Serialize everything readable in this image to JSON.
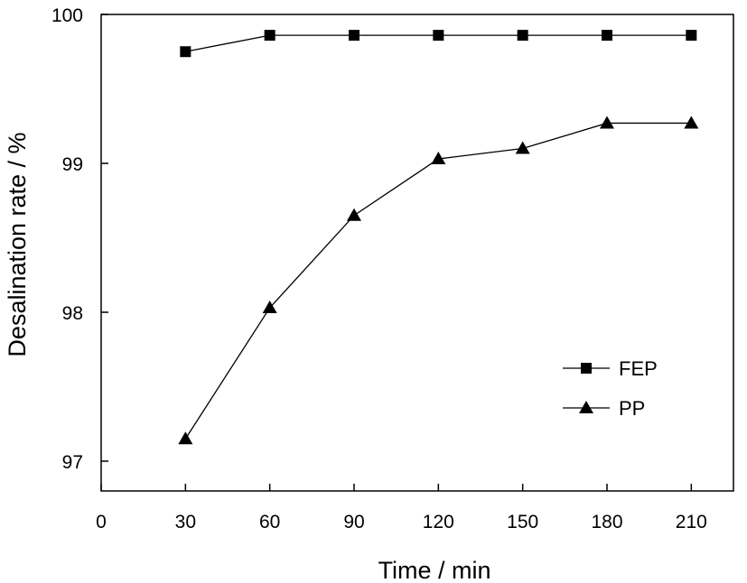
{
  "chart_data": {
    "type": "line",
    "xlabel": "Time / min",
    "ylabel": "Desalination rate / %",
    "xlim": [
      0,
      225
    ],
    "ylim": [
      96.8,
      100
    ],
    "xticks": [
      "0",
      "30",
      "60",
      "90",
      "120",
      "150",
      "180",
      "210"
    ],
    "yticks": [
      "97",
      "98",
      "99",
      "100"
    ],
    "x": [
      30,
      60,
      90,
      120,
      150,
      180,
      210
    ],
    "series": [
      {
        "name": "FEP",
        "marker": "square",
        "color": "#000000",
        "values": [
          99.75,
          99.86,
          99.86,
          99.86,
          99.86,
          99.86,
          99.86
        ]
      },
      {
        "name": "PP",
        "marker": "triangle",
        "color": "#000000",
        "values": [
          97.15,
          98.03,
          98.65,
          99.03,
          99.1,
          99.27,
          99.27
        ]
      }
    ],
    "legend": "right",
    "grid": false
  }
}
